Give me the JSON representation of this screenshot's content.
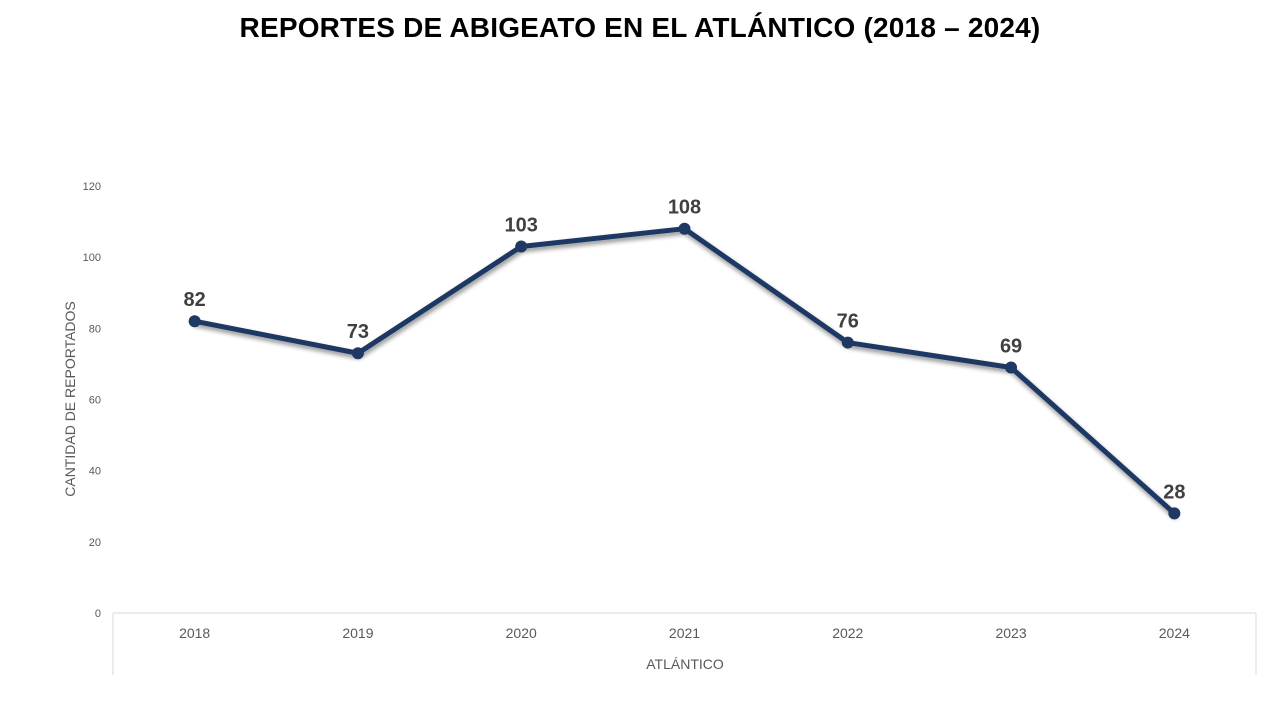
{
  "chart_data": {
    "type": "line",
    "title": "REPORTES DE ABIGEATO EN EL ATLÁNTICO (2018 – 2024)",
    "xlabel": "ATLÁNTICO",
    "ylabel": "CANTIDAD DE REPORTADOS",
    "categories": [
      "2018",
      "2019",
      "2020",
      "2021",
      "2022",
      "2023",
      "2024"
    ],
    "series": [
      {
        "values": [
          82,
          73,
          103,
          108,
          76,
          69,
          28
        ],
        "color": "#1f3864"
      }
    ],
    "ylim": [
      0,
      120
    ],
    "yticks": [
      0,
      20,
      40,
      60,
      80,
      100,
      120
    ],
    "grid": false,
    "data_labels": true,
    "legend": "none"
  }
}
